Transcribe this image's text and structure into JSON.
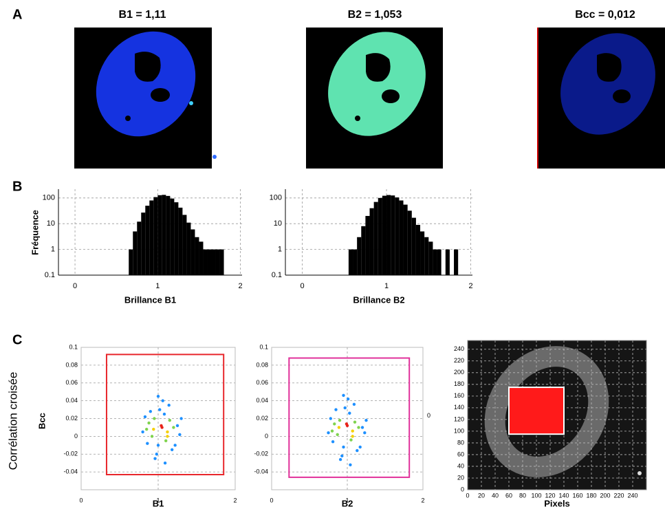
{
  "panel_labels": [
    "A",
    "B",
    "C"
  ],
  "images": [
    {
      "title": "B1 = 1,11"
    },
    {
      "title": "B2 = 1,053"
    },
    {
      "title": "Bcc = 0,012"
    }
  ],
  "row_label": "Corrélation croisée",
  "chart_data": [
    {
      "type": "histogram",
      "xlabel": "Brillance B1",
      "ylabel": "Fréquence",
      "bins": [
        0.65,
        0.7,
        0.75,
        0.8,
        0.85,
        0.9,
        0.95,
        1.0,
        1.05,
        1.1,
        1.15,
        1.2,
        1.25,
        1.3,
        1.35,
        1.4,
        1.45,
        1.5,
        1.55,
        1.6,
        1.65,
        1.7,
        1.75,
        1.8,
        1.85
      ],
      "values": [
        1,
        5,
        12,
        27,
        50,
        80,
        108,
        128,
        132,
        120,
        95,
        68,
        42,
        22,
        11,
        6,
        3,
        2,
        1,
        1,
        1,
        1,
        1,
        0
      ],
      "color": "#000000",
      "xlim": [
        -0.2,
        2.02
      ],
      "ylim": [
        0.1,
        220
      ],
      "xticks": [
        0,
        1,
        2
      ],
      "yticks": [
        0.1,
        1,
        10,
        100
      ],
      "log_y": true,
      "grid": true
    },
    {
      "type": "histogram",
      "xlabel": "Brillance B2",
      "bins": [
        0.55,
        0.6,
        0.65,
        0.7,
        0.75,
        0.8,
        0.85,
        0.9,
        0.95,
        1.0,
        1.05,
        1.1,
        1.15,
        1.2,
        1.25,
        1.3,
        1.35,
        1.4,
        1.45,
        1.5,
        1.55,
        1.6,
        1.65,
        1.7,
        1.75,
        1.8,
        1.85
      ],
      "values": [
        1,
        1,
        3,
        8,
        20,
        40,
        70,
        100,
        122,
        130,
        125,
        105,
        80,
        55,
        32,
        17,
        9,
        5,
        3,
        2,
        1,
        1,
        0,
        1,
        0,
        1
      ],
      "color": "#000000",
      "xlim": [
        -0.2,
        2.02
      ],
      "ylim": [
        0.1,
        220
      ],
      "xticks": [
        0,
        1,
        2
      ],
      "yticks": [
        0.1,
        1,
        10,
        100
      ],
      "log_y": true,
      "grid": true
    },
    {
      "type": "scatter",
      "xlabel": "B1",
      "ylabel": "Bcc",
      "x": [
        1.05,
        0.95,
        1.12,
        0.88,
        1.2,
        1.0,
        1.08,
        0.92,
        1.15,
        0.85,
        1.25,
        1.02,
        0.98,
        1.1,
        0.9,
        1.18,
        1.3,
        0.8,
        1.06,
        0.96,
        1.14,
        1.04,
        0.94,
        1.22,
        0.86,
        1.0,
        1.12,
        1.28,
        0.83,
        1.09
      ],
      "values": [
        0.01,
        0.02,
        0.005,
        0.015,
        0.01,
        -0.01,
        0.025,
        0.0,
        0.018,
        0.008,
        0.012,
        0.03,
        -0.02,
        -0.005,
        0.028,
        -0.015,
        0.02,
        0.005,
        0.04,
        -0.025,
        0.035,
        0.012,
        0.008,
        -0.01,
        -0.008,
        0.045,
        0.0,
        0.002,
        0.022,
        -0.03
      ],
      "colors": [
        "#e8231a",
        "#f5d000",
        "#7fd34e",
        "#1e90ff"
      ],
      "xlim": [
        0,
        2
      ],
      "ylim": [
        -0.06,
        0.1
      ],
      "xticks": [
        0,
        1,
        2
      ],
      "yticks": [
        -0.04,
        -0.02,
        0,
        0.02,
        0.04,
        0.06,
        0.08,
        0.1
      ],
      "grid": true,
      "roi": {
        "x": [
          0.33,
          1.85
        ],
        "y": [
          -0.043,
          0.092
        ],
        "color": "#e8262b"
      }
    },
    {
      "type": "scatter",
      "xlabel": "B2",
      "annotation": "0",
      "x": [
        1.0,
        0.9,
        1.07,
        0.83,
        1.15,
        0.95,
        1.03,
        0.87,
        1.1,
        0.8,
        1.2,
        0.97,
        0.93,
        1.05,
        0.85,
        1.13,
        1.25,
        0.75,
        1.01,
        0.91,
        1.09,
        0.99,
        0.89,
        1.17,
        0.81,
        0.95,
        1.07,
        1.23,
        0.78,
        1.04
      ],
      "values": [
        0.012,
        0.018,
        0.006,
        0.014,
        0.01,
        -0.012,
        0.026,
        0.002,
        0.016,
        0.006,
        0.01,
        0.032,
        -0.022,
        -0.004,
        0.03,
        -0.016,
        0.018,
        0.004,
        0.042,
        -0.026,
        0.036,
        0.014,
        0.01,
        -0.012,
        -0.006,
        0.046,
        0.0,
        0.004,
        0.02,
        -0.032
      ],
      "colors": [
        "#e8231a",
        "#f5d000",
        "#7fd34e",
        "#1e90ff"
      ],
      "xlim": [
        0,
        2
      ],
      "ylim": [
        -0.06,
        0.1
      ],
      "xticks": [
        0,
        1,
        2
      ],
      "yticks": [
        -0.04,
        -0.02,
        0,
        0.02,
        0.04,
        0.06,
        0.08,
        0.1
      ],
      "grid": true,
      "roi": {
        "x": [
          0.23,
          1.82
        ],
        "y": [
          -0.046,
          0.088
        ],
        "color": "#e0309a"
      }
    },
    {
      "type": "image",
      "xlabel": "Pixels",
      "xlim": [
        0,
        260
      ],
      "ylim": [
        0,
        255
      ],
      "xticks": [
        0,
        20,
        40,
        60,
        80,
        100,
        120,
        140,
        160,
        180,
        200,
        220,
        240
      ],
      "yticks": [
        0,
        20,
        40,
        60,
        80,
        100,
        120,
        140,
        160,
        180,
        200,
        220,
        240
      ],
      "grid": true,
      "roi": {
        "x": [
          60,
          140
        ],
        "y": [
          95,
          175
        ],
        "color": "#ff1a1a"
      }
    }
  ]
}
